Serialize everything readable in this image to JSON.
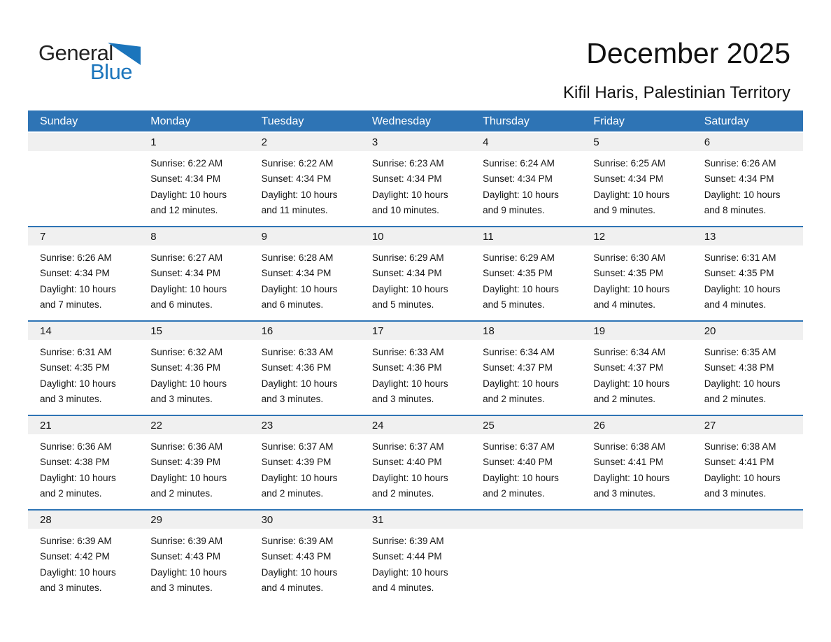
{
  "logo": {
    "word1": "General",
    "word2": "Blue",
    "triangle_icon": "blue-sail-triangle",
    "blue_color": "#1B75BC"
  },
  "header": {
    "title": "December 2025",
    "subtitle": "Kifil Haris, Palestinian Territory"
  },
  "theme": {
    "weekday_header_bg": "#2E74B5",
    "row_divider_color": "#2E74B5",
    "day_number_strip_bg": "#F0F0F0",
    "weekday_text_color": "#FFFFFF",
    "body_text_color": "#1A1A1A"
  },
  "calendar": {
    "weekday_headers": [
      "Sunday",
      "Monday",
      "Tuesday",
      "Wednesday",
      "Thursday",
      "Friday",
      "Saturday"
    ],
    "weeks": [
      [
        {
          "day": "",
          "lines": []
        },
        {
          "day": "1",
          "lines": [
            "Sunrise: 6:22 AM",
            "Sunset: 4:34 PM",
            "Daylight: 10 hours",
            "and 12 minutes."
          ]
        },
        {
          "day": "2",
          "lines": [
            "Sunrise: 6:22 AM",
            "Sunset: 4:34 PM",
            "Daylight: 10 hours",
            "and 11 minutes."
          ]
        },
        {
          "day": "3",
          "lines": [
            "Sunrise: 6:23 AM",
            "Sunset: 4:34 PM",
            "Daylight: 10 hours",
            "and 10 minutes."
          ]
        },
        {
          "day": "4",
          "lines": [
            "Sunrise: 6:24 AM",
            "Sunset: 4:34 PM",
            "Daylight: 10 hours",
            "and 9 minutes."
          ]
        },
        {
          "day": "5",
          "lines": [
            "Sunrise: 6:25 AM",
            "Sunset: 4:34 PM",
            "Daylight: 10 hours",
            "and 9 minutes."
          ]
        },
        {
          "day": "6",
          "lines": [
            "Sunrise: 6:26 AM",
            "Sunset: 4:34 PM",
            "Daylight: 10 hours",
            "and 8 minutes."
          ]
        }
      ],
      [
        {
          "day": "7",
          "lines": [
            "Sunrise: 6:26 AM",
            "Sunset: 4:34 PM",
            "Daylight: 10 hours",
            "and 7 minutes."
          ]
        },
        {
          "day": "8",
          "lines": [
            "Sunrise: 6:27 AM",
            "Sunset: 4:34 PM",
            "Daylight: 10 hours",
            "and 6 minutes."
          ]
        },
        {
          "day": "9",
          "lines": [
            "Sunrise: 6:28 AM",
            "Sunset: 4:34 PM",
            "Daylight: 10 hours",
            "and 6 minutes."
          ]
        },
        {
          "day": "10",
          "lines": [
            "Sunrise: 6:29 AM",
            "Sunset: 4:34 PM",
            "Daylight: 10 hours",
            "and 5 minutes."
          ]
        },
        {
          "day": "11",
          "lines": [
            "Sunrise: 6:29 AM",
            "Sunset: 4:35 PM",
            "Daylight: 10 hours",
            "and 5 minutes."
          ]
        },
        {
          "day": "12",
          "lines": [
            "Sunrise: 6:30 AM",
            "Sunset: 4:35 PM",
            "Daylight: 10 hours",
            "and 4 minutes."
          ]
        },
        {
          "day": "13",
          "lines": [
            "Sunrise: 6:31 AM",
            "Sunset: 4:35 PM",
            "Daylight: 10 hours",
            "and 4 minutes."
          ]
        }
      ],
      [
        {
          "day": "14",
          "lines": [
            "Sunrise: 6:31 AM",
            "Sunset: 4:35 PM",
            "Daylight: 10 hours",
            "and 3 minutes."
          ]
        },
        {
          "day": "15",
          "lines": [
            "Sunrise: 6:32 AM",
            "Sunset: 4:36 PM",
            "Daylight: 10 hours",
            "and 3 minutes."
          ]
        },
        {
          "day": "16",
          "lines": [
            "Sunrise: 6:33 AM",
            "Sunset: 4:36 PM",
            "Daylight: 10 hours",
            "and 3 minutes."
          ]
        },
        {
          "day": "17",
          "lines": [
            "Sunrise: 6:33 AM",
            "Sunset: 4:36 PM",
            "Daylight: 10 hours",
            "and 3 minutes."
          ]
        },
        {
          "day": "18",
          "lines": [
            "Sunrise: 6:34 AM",
            "Sunset: 4:37 PM",
            "Daylight: 10 hours",
            "and 2 minutes."
          ]
        },
        {
          "day": "19",
          "lines": [
            "Sunrise: 6:34 AM",
            "Sunset: 4:37 PM",
            "Daylight: 10 hours",
            "and 2 minutes."
          ]
        },
        {
          "day": "20",
          "lines": [
            "Sunrise: 6:35 AM",
            "Sunset: 4:38 PM",
            "Daylight: 10 hours",
            "and 2 minutes."
          ]
        }
      ],
      [
        {
          "day": "21",
          "lines": [
            "Sunrise: 6:36 AM",
            "Sunset: 4:38 PM",
            "Daylight: 10 hours",
            "and 2 minutes."
          ]
        },
        {
          "day": "22",
          "lines": [
            "Sunrise: 6:36 AM",
            "Sunset: 4:39 PM",
            "Daylight: 10 hours",
            "and 2 minutes."
          ]
        },
        {
          "day": "23",
          "lines": [
            "Sunrise: 6:37 AM",
            "Sunset: 4:39 PM",
            "Daylight: 10 hours",
            "and 2 minutes."
          ]
        },
        {
          "day": "24",
          "lines": [
            "Sunrise: 6:37 AM",
            "Sunset: 4:40 PM",
            "Daylight: 10 hours",
            "and 2 minutes."
          ]
        },
        {
          "day": "25",
          "lines": [
            "Sunrise: 6:37 AM",
            "Sunset: 4:40 PM",
            "Daylight: 10 hours",
            "and 2 minutes."
          ]
        },
        {
          "day": "26",
          "lines": [
            "Sunrise: 6:38 AM",
            "Sunset: 4:41 PM",
            "Daylight: 10 hours",
            "and 3 minutes."
          ]
        },
        {
          "day": "27",
          "lines": [
            "Sunrise: 6:38 AM",
            "Sunset: 4:41 PM",
            "Daylight: 10 hours",
            "and 3 minutes."
          ]
        }
      ],
      [
        {
          "day": "28",
          "lines": [
            "Sunrise: 6:39 AM",
            "Sunset: 4:42 PM",
            "Daylight: 10 hours",
            "and 3 minutes."
          ]
        },
        {
          "day": "29",
          "lines": [
            "Sunrise: 6:39 AM",
            "Sunset: 4:43 PM",
            "Daylight: 10 hours",
            "and 3 minutes."
          ]
        },
        {
          "day": "30",
          "lines": [
            "Sunrise: 6:39 AM",
            "Sunset: 4:43 PM",
            "Daylight: 10 hours",
            "and 4 minutes."
          ]
        },
        {
          "day": "31",
          "lines": [
            "Sunrise: 6:39 AM",
            "Sunset: 4:44 PM",
            "Daylight: 10 hours",
            "and 4 minutes."
          ]
        },
        {
          "day": "",
          "lines": []
        },
        {
          "day": "",
          "lines": []
        },
        {
          "day": "",
          "lines": []
        }
      ]
    ]
  }
}
